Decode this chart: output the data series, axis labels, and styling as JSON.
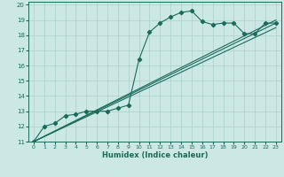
{
  "xlabel": "Humidex (Indice chaleur)",
  "ylabel": "",
  "bg_color": "#cce8e4",
  "grid_color": "#aad0cb",
  "line_color": "#1a6b5a",
  "xlim": [
    -0.5,
    23.5
  ],
  "ylim": [
    11,
    20.2
  ],
  "xticks": [
    0,
    1,
    2,
    3,
    4,
    5,
    6,
    7,
    8,
    9,
    10,
    11,
    12,
    13,
    14,
    15,
    16,
    17,
    18,
    19,
    20,
    21,
    22,
    23
  ],
  "yticks": [
    11,
    12,
    13,
    14,
    15,
    16,
    17,
    18,
    19,
    20
  ],
  "series1_x": [
    0,
    1,
    2,
    3,
    4,
    5,
    6,
    7,
    8,
    9,
    10,
    11,
    12,
    13,
    14,
    15,
    16,
    17,
    18,
    19,
    20,
    21,
    22,
    23
  ],
  "series1_y": [
    11.0,
    12.0,
    12.2,
    12.7,
    12.8,
    13.0,
    13.0,
    13.0,
    13.2,
    13.4,
    16.4,
    18.2,
    18.8,
    19.2,
    19.5,
    19.6,
    18.9,
    18.7,
    18.8,
    18.8,
    18.1,
    18.1,
    18.8,
    18.8
  ],
  "line2_x0": 0,
  "line2_y0": 11.0,
  "line2_x1": 23,
  "line2_y1": 18.8,
  "line3_x0": 0,
  "line3_y0": 11.0,
  "line3_x1": 23,
  "line3_y1": 19.0,
  "line4_x0": 0,
  "line4_y0": 11.0,
  "line4_x1": 23,
  "line4_y1": 18.5
}
